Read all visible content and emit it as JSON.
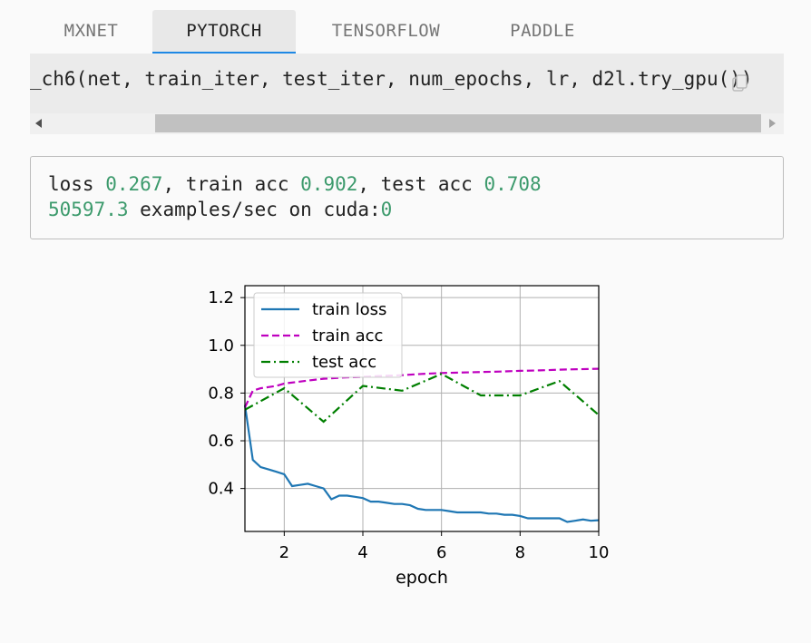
{
  "tabs": [
    {
      "label": "MXNET",
      "active": false
    },
    {
      "label": "PYTORCH",
      "active": true
    },
    {
      "label": "TENSORFLOW",
      "active": false
    },
    {
      "label": "PADDLE",
      "active": false
    }
  ],
  "code": {
    "line": "_ch6(net, train_iter, test_iter, num_epochs, lr, d2l.try_gpu())"
  },
  "output": {
    "line1": {
      "loss_label": "loss ",
      "loss": "0.267",
      "train_label": ", train acc ",
      "train_acc": "0.902",
      "test_label": ", test acc ",
      "test_acc": "0.708"
    },
    "line2": {
      "rate": "50597.3",
      "suffix": " examples/sec on cuda:",
      "device": "0"
    }
  },
  "colors": {
    "accent": "#1e88e5",
    "number": "#3c9a6c",
    "train_loss": "#1f77b4",
    "train_acc": "#bf00bf",
    "test_acc": "#007f00"
  },
  "chart_data": {
    "type": "line",
    "xlabel": "epoch",
    "ylabel": "",
    "xlim": [
      1,
      10
    ],
    "ylim": [
      0.22,
      1.25
    ],
    "x_ticks": [
      2,
      4,
      6,
      8,
      10
    ],
    "y_ticks": [
      0.4,
      0.6,
      0.8,
      1.0,
      1.2
    ],
    "y_tick_labels": [
      "0.4",
      "0.6",
      "0.8",
      "1.0",
      "1.2"
    ],
    "grid": true,
    "legend": "upper-left",
    "series": [
      {
        "name": "train loss",
        "style": "solid",
        "x": [
          1.0,
          1.2,
          1.4,
          1.6,
          1.8,
          2.0,
          2.2,
          2.4,
          2.6,
          2.8,
          3.0,
          3.2,
          3.4,
          3.6,
          3.8,
          4.0,
          4.2,
          4.4,
          4.6,
          4.8,
          5.0,
          5.2,
          5.4,
          5.6,
          5.8,
          6.0,
          6.2,
          6.4,
          6.6,
          6.8,
          7.0,
          7.2,
          7.4,
          7.6,
          7.8,
          8.0,
          8.2,
          8.4,
          8.6,
          8.8,
          9.0,
          9.2,
          9.4,
          9.6,
          9.8,
          10.0
        ],
        "y": [
          0.75,
          0.52,
          0.49,
          0.48,
          0.47,
          0.46,
          0.41,
          0.415,
          0.42,
          0.41,
          0.4,
          0.355,
          0.37,
          0.37,
          0.365,
          0.36,
          0.345,
          0.345,
          0.34,
          0.335,
          0.335,
          0.33,
          0.315,
          0.31,
          0.31,
          0.31,
          0.305,
          0.3,
          0.3,
          0.3,
          0.3,
          0.295,
          0.295,
          0.29,
          0.29,
          0.285,
          0.275,
          0.275,
          0.275,
          0.275,
          0.275,
          0.26,
          0.265,
          0.27,
          0.265,
          0.267
        ]
      },
      {
        "name": "train acc",
        "style": "dashed",
        "x": [
          1.0,
          1.2,
          1.4,
          1.6,
          1.8,
          2.0,
          2.5,
          3.0,
          3.5,
          4.0,
          4.5,
          5.0,
          5.5,
          6.0,
          6.5,
          7.0,
          7.5,
          8.0,
          8.5,
          9.0,
          9.5,
          10.0
        ],
        "y": [
          0.74,
          0.81,
          0.82,
          0.825,
          0.83,
          0.84,
          0.85,
          0.86,
          0.865,
          0.868,
          0.872,
          0.875,
          0.88,
          0.884,
          0.886,
          0.888,
          0.89,
          0.893,
          0.895,
          0.898,
          0.9,
          0.902
        ]
      },
      {
        "name": "test acc",
        "style": "dashdot",
        "x": [
          1,
          2,
          3,
          4,
          5,
          6,
          7,
          8,
          9,
          10
        ],
        "y": [
          0.73,
          0.82,
          0.68,
          0.83,
          0.81,
          0.88,
          0.79,
          0.79,
          0.85,
          0.708
        ]
      }
    ]
  }
}
